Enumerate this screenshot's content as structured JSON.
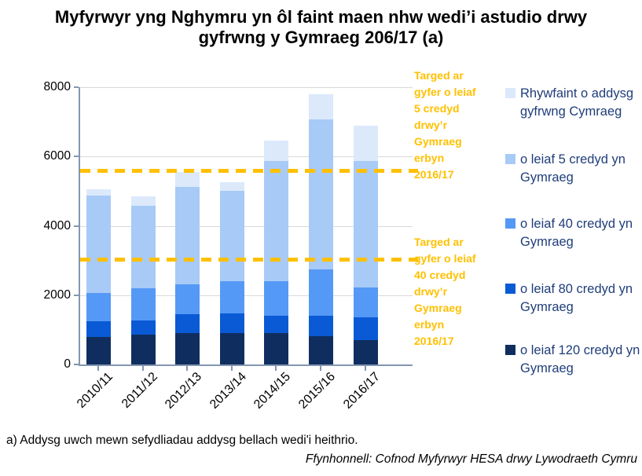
{
  "title": {
    "line1": "Myfyrwyr yng Nghymru yn ôl faint maen nhw wedi’i astudio drwy",
    "line2": "gyfrwng y Gymraeg 206/17 (a)"
  },
  "footnote": "a) Addysg uwch mewn sefydliadau addysg bellach wedi'i heithrio.",
  "source": "Ffynhonnell: Cofnod Myfyrwyr HESA drwy Lywodraeth Cymru",
  "colors": {
    "target": "#FFC000",
    "legend_text": "#1f3d7a",
    "gridline": "#d9d9d9",
    "axis": "#8496b0"
  },
  "chart_data": {
    "type": "bar",
    "stacked": true,
    "title": "Myfyrwyr yng Nghymru yn ôl faint maen nhw wedi’i astudio drwy gyfrwng y Gymraeg 206/17 (a)",
    "categories": [
      "2010/11",
      "2011/12",
      "2012/13",
      "2013/14",
      "2014/15",
      "2015/16",
      "2016/17"
    ],
    "series": [
      {
        "name": "Rhywfaint o addysg gyfrwng Cymraeg",
        "color": "#dbe9fb",
        "values": [
          190,
          280,
          430,
          250,
          580,
          730,
          1020
        ]
      },
      {
        "name": "o leiaf 5 credyd yn Gymraeg",
        "color": "#a8caf6",
        "values": [
          2810,
          2360,
          2800,
          2620,
          3470,
          4330,
          3650
        ]
      },
      {
        "name": "o leiaf 40 credyd yn Gymraeg",
        "color": "#5599f6",
        "values": [
          820,
          950,
          870,
          930,
          990,
          1340,
          860
        ]
      },
      {
        "name": "o leiaf 80 credyd yn Gymraeg",
        "color": "#0a5ad6",
        "values": [
          440,
          400,
          550,
          560,
          500,
          580,
          660
        ]
      },
      {
        "name": "o leiaf 120 credyd yn Gymraeg",
        "color": "#0f2e5f",
        "values": [
          800,
          860,
          900,
          910,
          910,
          820,
          710
        ]
      }
    ],
    "stack_order_bottom_to_top": [
      "o leiaf 120 credyd yn Gymraeg",
      "o leiaf 80 credyd yn Gymraeg",
      "o leiaf 40 credyd yn Gymraeg",
      "o leiaf 5 credyd yn Gymraeg",
      "Rhywfaint o addysg gyfrwng Cymraeg"
    ],
    "bar_totals": [
      5060,
      4850,
      5550,
      5270,
      6450,
      7800,
      6900
    ],
    "xlabel": "",
    "ylabel": "",
    "ylim": [
      0,
      8000
    ],
    "yticks": [
      0,
      2000,
      4000,
      6000,
      8000
    ],
    "grid": "horizontal",
    "legend_position": "right",
    "target_lines": [
      {
        "value": 5600,
        "label": "Targed ar gyfer o leiaf 5 credyd drwy’r Gymraeg erbyn 2016/17",
        "color": "#FFC000",
        "style": "dashed"
      },
      {
        "value": 3030,
        "label": "Targed ar gyfer o leiaf 40 credyd drwy’r Gymraeg erbyn 2016/17",
        "color": "#FFC000",
        "style": "dashed"
      }
    ]
  }
}
